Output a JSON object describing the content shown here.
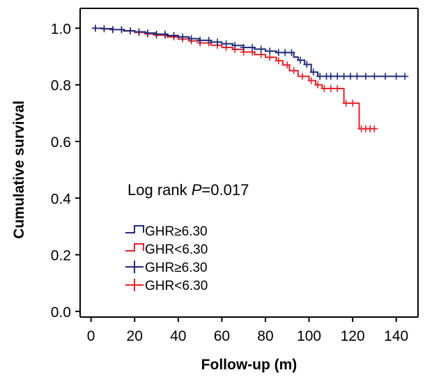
{
  "chart_data": {
    "type": "line",
    "subtype": "kaplan-meier",
    "xlabel": "Follow-up (m)",
    "ylabel": "Cumulative survival",
    "xlim": [
      -5,
      150
    ],
    "ylim": [
      -0.02,
      1.07
    ],
    "xticks": [
      0,
      20,
      40,
      60,
      80,
      100,
      120,
      140
    ],
    "xtick_labels": [
      "0",
      "20",
      "40",
      "60",
      "80",
      "100",
      "120",
      "140"
    ],
    "yticks": [
      0.0,
      0.2,
      0.4,
      0.6,
      0.8,
      1.0
    ],
    "ytick_labels": [
      "0.0",
      "0.2",
      "0.4",
      "0.6",
      "0.8",
      "1.0"
    ],
    "grid": false,
    "annotation": {
      "prefix": "Log rank ",
      "p_symbol": "P",
      "suffix": "=0.017"
    },
    "legend": {
      "placement": "lower-left",
      "entries": [
        {
          "label": "GHR≥6.30",
          "series": 0,
          "marker": "step"
        },
        {
          "label": "GHR<6.30",
          "series": 1,
          "marker": "step"
        },
        {
          "label": "GHR≥6.30",
          "series": 0,
          "marker": "plus"
        },
        {
          "label": "GHR<6.30",
          "series": 1,
          "marker": "plus"
        }
      ]
    },
    "series": [
      {
        "name": "GHR≥6.30",
        "color": "#1f2a78",
        "x": [
          1,
          5,
          10,
          15,
          20,
          25,
          30,
          35,
          40,
          45,
          50,
          55,
          60,
          65,
          70,
          75,
          80,
          85,
          90,
          93,
          95,
          98,
          101,
          104,
          110,
          120,
          130,
          140,
          144
        ],
        "y": [
          1.0,
          0.998,
          0.995,
          0.991,
          0.987,
          0.983,
          0.979,
          0.974,
          0.969,
          0.963,
          0.957,
          0.951,
          0.945,
          0.939,
          0.932,
          0.926,
          0.919,
          0.914,
          0.914,
          0.898,
          0.887,
          0.872,
          0.845,
          0.83,
          0.83,
          0.83,
          0.83,
          0.83,
          0.83
        ],
        "censor_x": [
          2,
          6,
          10,
          14,
          18,
          22,
          26,
          30,
          34,
          38,
          42,
          46,
          50,
          54,
          58,
          62,
          66,
          70,
          74,
          78,
          82,
          86,
          89,
          92,
          96,
          99,
          102,
          105,
          108,
          110,
          113,
          116,
          119,
          122,
          126,
          130,
          135,
          140,
          144
        ]
      },
      {
        "name": "GHR<6.30",
        "color": "#e3222b",
        "x": [
          1,
          5,
          10,
          15,
          20,
          25,
          30,
          35,
          40,
          45,
          50,
          55,
          60,
          65,
          70,
          75,
          80,
          85,
          88,
          91,
          95,
          100,
          103,
          106,
          110,
          113,
          116,
          123,
          130
        ],
        "y": [
          1.0,
          0.998,
          0.995,
          0.99,
          0.985,
          0.98,
          0.975,
          0.969,
          0.962,
          0.955,
          0.948,
          0.94,
          0.932,
          0.925,
          0.916,
          0.907,
          0.897,
          0.885,
          0.87,
          0.85,
          0.83,
          0.815,
          0.8,
          0.787,
          0.787,
          0.787,
          0.735,
          0.645,
          0.645
        ],
        "censor_x": [
          2,
          6,
          10,
          14,
          18,
          22,
          26,
          30,
          34,
          38,
          42,
          46,
          50,
          54,
          58,
          62,
          66,
          70,
          74,
          78,
          82,
          86,
          90,
          93,
          97,
          101,
          104,
          107,
          110,
          113,
          117,
          120,
          124,
          126,
          128,
          130
        ]
      }
    ]
  }
}
